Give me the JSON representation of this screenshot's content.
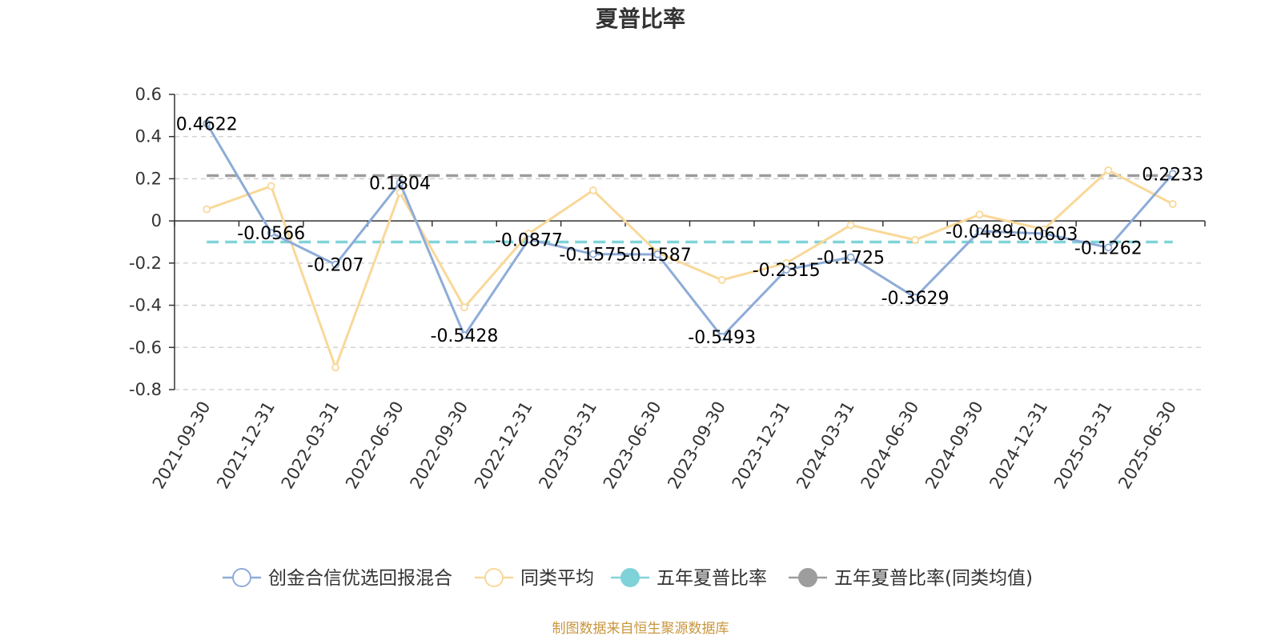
{
  "chart_data": {
    "type": "line",
    "title": "夏普比率",
    "categories": [
      "2021-09-30",
      "2021-12-31",
      "2022-03-31",
      "2022-06-30",
      "2022-09-30",
      "2022-12-31",
      "2023-03-31",
      "2023-06-30",
      "2023-09-30",
      "2023-12-31",
      "2024-03-31",
      "2024-06-30",
      "2024-09-30",
      "2024-12-31",
      "2025-03-31",
      "2025-06-30"
    ],
    "ylim": [
      -0.8,
      0.6
    ],
    "yticks": [
      "0.6",
      "0.4",
      "0.2",
      "0",
      "-0.2",
      "-0.4",
      "-0.6",
      "-0.8"
    ],
    "grid": true,
    "legend_position": "bottom",
    "series": [
      {
        "name": "创金合信优选回报混合",
        "color": "#8eacd8",
        "values": [
          0.4622,
          -0.0566,
          -0.207,
          0.1804,
          -0.5428,
          -0.0877,
          -0.1575,
          -0.1587,
          -0.5493,
          -0.2315,
          -0.1725,
          -0.3629,
          -0.0489,
          -0.0603,
          -0.1262,
          0.2233
        ],
        "labels": [
          "0.4622",
          "-0.0566",
          "-0.207",
          "0.1804",
          "-0.5428",
          "-0.0877",
          "-0.1575",
          "-0.1587",
          "-0.5493",
          "-0.2315",
          "-0.1725",
          "-0.3629",
          "-0.0489",
          "-0.0603",
          "-0.1262",
          "0.2233"
        ]
      },
      {
        "name": "同类平均",
        "color": "#f9d899",
        "values": [
          0.055,
          0.165,
          -0.695,
          0.135,
          -0.41,
          -0.06,
          0.145,
          -0.15,
          -0.28,
          -0.2,
          -0.02,
          -0.09,
          0.03,
          -0.04,
          0.24,
          0.08
        ]
      },
      {
        "name": "五年夏普比率",
        "color": "#7fd3d8",
        "constant": -0.1
      },
      {
        "name": "五年夏普比率(同类均值)",
        "color": "#9d9d9d",
        "constant": 0.215
      }
    ],
    "source": "制图数据来自恒生聚源数据库"
  }
}
